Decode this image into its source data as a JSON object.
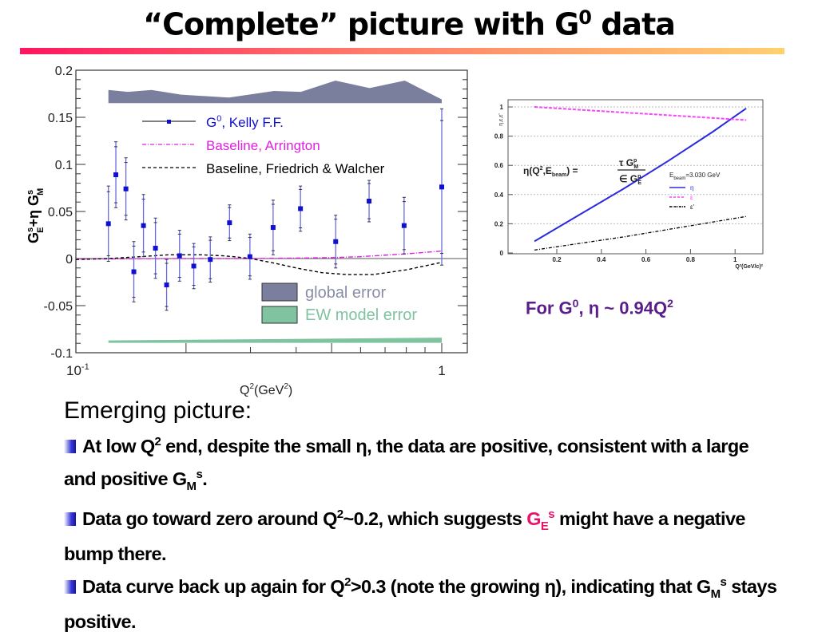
{
  "slide": {
    "title": "“Complete” picture with G",
    "title_sup": "0",
    "title_end": " data",
    "caption": {
      "a": "For G",
      "sup": "0",
      "b": ", η ~ 0.94Q",
      "sup2": "2"
    },
    "emerging": "Emerging picture:",
    "bullets": [
      [
        {
          "text": "At low Q"
        },
        {
          "text": "2",
          "style": "sup"
        },
        {
          "text": " end, despite the small η, the data are positive, consistent with a large and positive G"
        },
        {
          "text": "M",
          "style": "sub"
        },
        {
          "text": "s",
          "style": "sup"
        },
        {
          "text": "."
        }
      ],
      [
        {
          "text": "Data go toward zero around Q"
        },
        {
          "text": "2",
          "style": "sup"
        },
        {
          "text": "~0.2, which suggests "
        },
        {
          "text": "G",
          "color": "#e8126a"
        },
        {
          "text": "E",
          "style": "sub",
          "color": "#e8126a"
        },
        {
          "text": "s",
          "style": "sup",
          "color": "#e8126a"
        },
        {
          "text": " might have a negative bump there."
        }
      ],
      [
        {
          "text": "Data curve back up again for Q"
        },
        {
          "text": "2",
          "style": "sup"
        },
        {
          "text": ">0.3 (note the growing η), indicating that G"
        },
        {
          "text": "M",
          "style": "sub"
        },
        {
          "text": "s",
          "style": "sup"
        },
        {
          "text": " stays positive."
        }
      ]
    ]
  },
  "colors": {
    "data": "#1010d0",
    "errbar": "#6a6ae0",
    "arrington": "#e020e0",
    "fw": "#000000",
    "global": "#7b7f9e",
    "ew": "#7fc3a0",
    "eta": "#2a2ae0",
    "eps": "#ff40ff"
  },
  "chart_data": [
    {
      "type": "scatter",
      "xscale": "log",
      "xlim": [
        0.1,
        1.07
      ],
      "ylim": [
        -0.1,
        0.2
      ],
      "xlabel": "Q",
      "xlabel_sup": "2",
      "xlabel_mid": "(GeV",
      "xlabel_sup2": "2",
      "xlabel_end": ")",
      "ylabel": "G_E^s+η G_M^s",
      "ylabel_parts": {
        "g1": "G",
        "e": "E",
        "s1": "s",
        "mid": "+η G",
        "m": "M",
        "s2": "s"
      },
      "yticks": [
        "-0.1",
        "-0.05",
        "0",
        "0.05",
        "0.1",
        "0.15",
        "0.2"
      ],
      "ytick_values": [
        -0.1,
        -0.05,
        0,
        0.05,
        0.1,
        0.15,
        0.2
      ],
      "xtick_left": "10",
      "xtick_left_sup": "-1",
      "xtick_right": "1",
      "legend": {
        "kelly": "G",
        "kelly_sup": "0",
        "kelly_end": ", Kelly F.F.",
        "arrington": "Baseline, Arrington",
        "fw": "Baseline, Friedrich & Walcher",
        "global": "global error",
        "ew": "EW model error"
      },
      "points": {
        "x": [
          0.1227,
          0.1286,
          0.137,
          0.144,
          0.153,
          0.165,
          0.177,
          0.192,
          0.21,
          0.233,
          0.263,
          0.299,
          0.346,
          0.411,
          0.513,
          0.633,
          0.789,
          1.0
        ],
        "y": [
          0.037,
          0.089,
          0.074,
          -0.014,
          0.035,
          0.011,
          -0.028,
          0.003,
          -0.008,
          -0.001,
          0.038,
          0.002,
          0.033,
          0.053,
          0.018,
          0.061,
          0.035,
          0.076
        ],
        "yerr": [
          0.04,
          0.035,
          0.033,
          0.032,
          0.033,
          0.032,
          0.027,
          0.027,
          0.024,
          0.024,
          0.019,
          0.024,
          0.029,
          0.024,
          0.028,
          0.022,
          0.03,
          0.083
        ]
      },
      "arrington": {
        "x": [
          0.1,
          0.2,
          0.3,
          0.4,
          0.5,
          0.6,
          0.8,
          1.0
        ],
        "y": [
          -0.0005,
          0,
          0,
          0.0005,
          0.001,
          0.002,
          0.005,
          0.008
        ]
      },
      "fw": {
        "x": [
          0.1,
          0.123,
          0.15,
          0.18,
          0.22,
          0.25,
          0.27,
          0.3,
          0.35,
          0.4,
          0.47,
          0.55,
          0.65,
          0.8,
          1.0
        ],
        "y": [
          -0.001,
          0,
          0.002,
          0.004,
          0.004,
          0.003,
          0.002,
          0,
          -0.005,
          -0.01,
          -0.015,
          -0.017,
          -0.017,
          -0.012,
          -0.004
        ]
      },
      "global_band": {
        "x": [
          0.1227,
          0.1387,
          0.161,
          0.194,
          0.262,
          0.348,
          0.412,
          0.512,
          0.635,
          0.792,
          1.0
        ],
        "top": [
          0.179,
          0.177,
          0.179,
          0.174,
          0.171,
          0.178,
          0.177,
          0.189,
          0.181,
          0.189,
          0.169
        ],
        "bottom": 0.165
      },
      "ew_band": {
        "x": [
          0.1227,
          1.0
        ],
        "top": [
          -0.087,
          -0.084
        ],
        "bottom": -0.0895
      }
    },
    {
      "type": "line",
      "xlim": [
        0.05,
        1.12
      ],
      "ylim": [
        0,
        1.05
      ],
      "xticks": [
        "0.2",
        "0.4",
        "0.6",
        "0.8",
        "1"
      ],
      "xtick_values": [
        0.2,
        0.4,
        0.6,
        0.8,
        1.0
      ],
      "yticks": [
        "0",
        "0.2",
        "0.4",
        "0.6",
        "0.8",
        "1"
      ],
      "ytick_values": [
        0,
        0.2,
        0.4,
        0.6,
        0.8,
        1.0
      ],
      "xlabel": "Q²(GeV/c)²",
      "ylabel": "η,ε,ε'",
      "formula": {
        "lhs": "η(Q",
        "lhs_sup": "2",
        "lhs_mid": ",E",
        "lhs_sub": "beam",
        "lhs_end": ") =",
        "num": "τ G",
        "num_sup": "p",
        "num_sub": "M",
        "den": "∈ G",
        "den_sup": "p",
        "den_sub": "E"
      },
      "legend": {
        "title": "E",
        "title_sub": "beam",
        "title_end": "=3.030 GeV",
        "eta": "η",
        "eps": "ε",
        "epsp": "ε'"
      },
      "series": [
        {
          "name": "η",
          "x": [
            0.1,
            0.3,
            0.5,
            0.7,
            0.9,
            1.05
          ],
          "y": [
            0.08,
            0.26,
            0.44,
            0.63,
            0.83,
            0.99
          ]
        },
        {
          "name": "ε",
          "x": [
            0.1,
            1.05
          ],
          "y": [
            1.0,
            0.91
          ]
        },
        {
          "name": "ε'",
          "x": [
            0.1,
            0.5,
            1.05
          ],
          "y": [
            0.02,
            0.11,
            0.25
          ]
        }
      ]
    }
  ]
}
